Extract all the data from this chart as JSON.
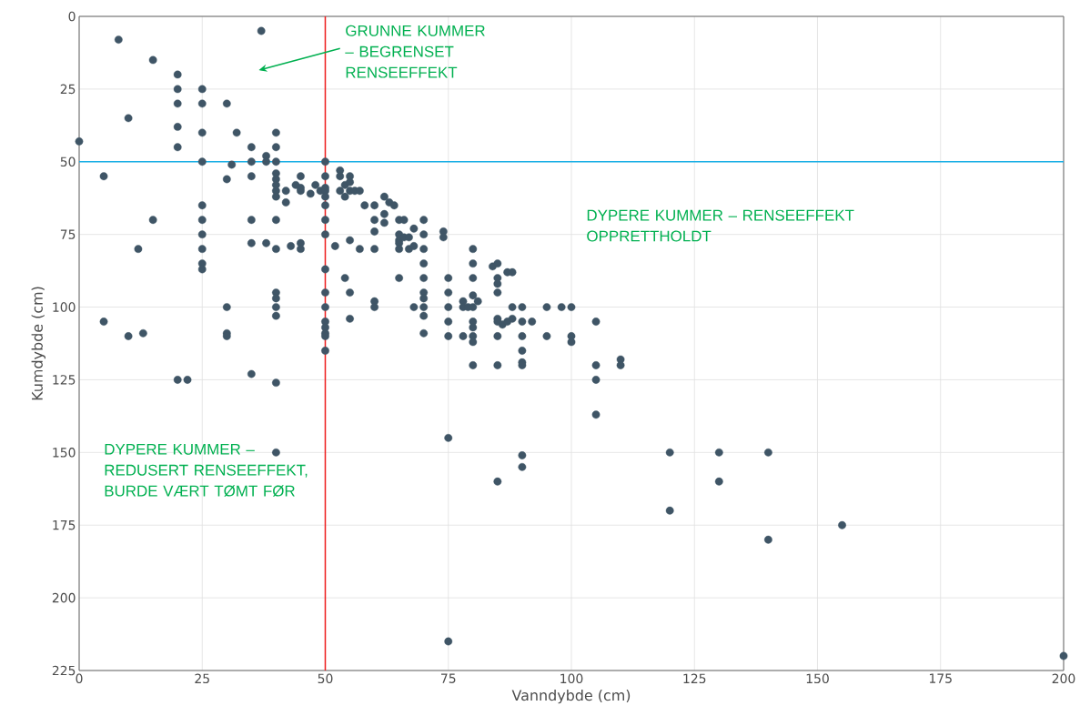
{
  "chart_data": {
    "type": "scatter",
    "xlabel": "Vanndybde (cm)",
    "ylabel": "Kumdybde (cm)",
    "x": [
      0,
      8,
      15,
      37,
      10,
      5,
      20,
      20,
      20,
      20,
      20,
      25,
      25,
      25,
      25,
      25,
      25,
      25,
      25,
      25,
      25,
      30,
      32,
      31,
      30,
      35,
      35,
      35,
      35,
      35,
      38,
      38,
      40,
      40,
      40,
      40,
      40,
      40,
      40,
      40,
      40,
      40,
      38,
      15,
      12,
      5,
      10,
      13,
      30,
      30,
      30,
      40,
      40,
      40,
      40,
      20,
      22,
      35,
      40,
      40,
      42,
      42,
      44,
      45,
      45,
      45,
      47,
      48,
      49,
      43,
      45,
      45,
      50,
      50,
      50,
      50,
      50,
      50,
      50,
      50,
      50,
      50,
      50,
      50,
      50,
      50,
      50,
      50,
      53,
      53,
      54,
      55,
      55,
      55,
      53,
      54,
      56,
      52,
      54,
      55,
      55,
      55,
      57,
      58,
      57,
      60,
      60,
      60,
      60,
      60,
      60,
      62,
      62,
      62,
      63,
      64,
      65,
      65,
      65,
      65,
      65,
      66,
      66,
      67,
      67,
      65,
      68,
      68,
      68,
      70,
      70,
      70,
      70,
      70,
      70,
      70,
      70,
      70,
      70,
      74,
      74,
      75,
      75,
      75,
      75,
      75,
      75,
      75,
      78,
      78,
      78,
      79,
      80,
      80,
      80,
      80,
      80,
      80,
      80,
      80,
      80,
      80,
      81,
      84,
      85,
      85,
      85,
      85,
      85,
      85,
      86,
      85,
      85,
      85,
      87,
      88,
      87,
      88,
      88,
      90,
      90,
      90,
      90,
      90,
      90,
      90,
      90,
      92,
      95,
      95,
      98,
      100,
      100,
      100,
      105,
      105,
      105,
      105,
      110,
      110,
      120,
      120,
      130,
      130,
      140,
      140,
      155,
      200
    ],
    "values": [
      43,
      8,
      15,
      5,
      35,
      55,
      20,
      25,
      30,
      38,
      45,
      25,
      30,
      40,
      50,
      65,
      70,
      75,
      80,
      85,
      87,
      30,
      40,
      51,
      56,
      45,
      50,
      55,
      70,
      78,
      48,
      50,
      40,
      45,
      50,
      54,
      56,
      58,
      60,
      62,
      70,
      80,
      78,
      70,
      80,
      105,
      110,
      109,
      100,
      109,
      110,
      95,
      97,
      100,
      103,
      125,
      125,
      123,
      126,
      150,
      60,
      64,
      58,
      55,
      60,
      59,
      61,
      58,
      60,
      79,
      78,
      80,
      50,
      55,
      59,
      60,
      62,
      65,
      70,
      75,
      87,
      95,
      100,
      105,
      107,
      109,
      110,
      115,
      53,
      55,
      58,
      55,
      57,
      60,
      60,
      62,
      60,
      79,
      90,
      95,
      77,
      104,
      60,
      65,
      80,
      65,
      70,
      74,
      80,
      98,
      100,
      62,
      68,
      71,
      64,
      65,
      70,
      75,
      77,
      78,
      80,
      76,
      70,
      76,
      80,
      90,
      73,
      79,
      100,
      70,
      75,
      80,
      85,
      90,
      95,
      97,
      100,
      103,
      109,
      74,
      76,
      90,
      95,
      100,
      105,
      110,
      145,
      215,
      98,
      100,
      110,
      100,
      80,
      85,
      90,
      96,
      100,
      105,
      107,
      110,
      112,
      120,
      98,
      86,
      85,
      90,
      92,
      95,
      104,
      105,
      106,
      110,
      120,
      160,
      88,
      88,
      105,
      104,
      100,
      100,
      105,
      110,
      115,
      119,
      120,
      151,
      155,
      105,
      100,
      110,
      100,
      100,
      110,
      112,
      105,
      120,
      125,
      137,
      118,
      120,
      150,
      170,
      150,
      160,
      150,
      180,
      175,
      220
    ],
    "color": "#3f5566",
    "marker": "circle",
    "xlim": [
      0,
      200
    ],
    "ylim": [
      225,
      0
    ],
    "xticks": [
      0,
      25,
      50,
      75,
      100,
      125,
      150,
      175,
      200
    ],
    "yticks": [
      0,
      25,
      50,
      75,
      100,
      125,
      150,
      175,
      200,
      225
    ],
    "grid": true,
    "ref_lines": [
      {
        "axis": "y",
        "value": 50,
        "color": "#1aafe6"
      },
      {
        "axis": "x",
        "value": 50,
        "color": "#ee1c1c"
      }
    ],
    "annotations": [
      "GRUNNE KUMMER – BEGRENSET RENSEEFFEKT",
      "DYPERE KUMMER – RENSEEFFEKT OPPRETTHOLDT",
      "DYPERE KUMMER – REDUSERT RENSEEFFEKT, BURDE VÆRT TØMT FØR"
    ]
  }
}
